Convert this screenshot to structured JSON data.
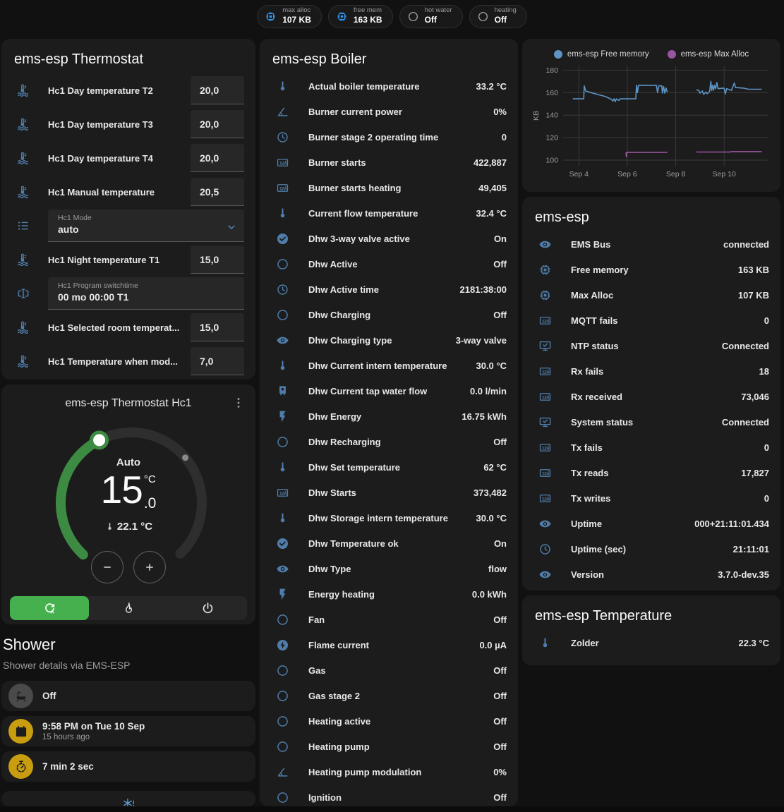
{
  "theme": {
    "bg": "#111111",
    "panel": "#1c1c1c",
    "input_bg": "#272727",
    "text": "#e8e8e8",
    "text_secondary": "#9c9c9c",
    "icon_blue": "#4f7ca9",
    "icon_bright_blue": "#2e97f2",
    "icon_gray": "#9e9e9e",
    "icon_yellow": "#c99d10",
    "green": "#3d8b42",
    "green_bright": "#45b04d"
  },
  "topbar": {
    "chips": [
      {
        "label": "max alloc",
        "value": "107 KB",
        "icon": "chip",
        "icon_color": "#2e97f2"
      },
      {
        "label": "free mem",
        "value": "163 KB",
        "icon": "chip",
        "icon_color": "#2e97f2"
      },
      {
        "label": "hot water",
        "value": "Off",
        "icon": "circle-outline",
        "icon_color": "#9e9e9e"
      },
      {
        "label": "heating",
        "value": "Off",
        "icon": "circle-outline",
        "icon_color": "#9e9e9e"
      }
    ]
  },
  "thermostat_panel": {
    "title": "ems-esp Thermostat",
    "rows": [
      {
        "type": "number",
        "icon": "thermometer-water",
        "label": "Hc1 Day temperature T2",
        "value": "20,0"
      },
      {
        "type": "number",
        "icon": "thermometer-water",
        "label": "Hc1 Day temperature T3",
        "value": "20,0"
      },
      {
        "type": "number",
        "icon": "thermometer-water",
        "label": "Hc1 Day temperature T4",
        "value": "20,0"
      },
      {
        "type": "number",
        "icon": "thermometer-water",
        "label": "Hc1 Manual temperature",
        "value": "20,5"
      },
      {
        "type": "select",
        "icon": "format-list",
        "label": "Hc1 Mode",
        "value": "auto"
      },
      {
        "type": "number",
        "icon": "thermometer-water",
        "label": "Hc1 Night temperature T1",
        "value": "15,0"
      },
      {
        "type": "text",
        "icon": "form-textbox",
        "label": "Hc1 Program switchtime",
        "value": "00 mo 00:00 T1"
      },
      {
        "type": "number",
        "icon": "thermometer-water",
        "label": "Hc1 Selected room temperat...",
        "value": "15,0"
      },
      {
        "type": "number",
        "icon": "thermometer-water",
        "label": "Hc1 Temperature when mod...",
        "value": "7,0"
      }
    ]
  },
  "thermostat_card": {
    "title": "ems-esp Thermostat Hc1",
    "mode_label": "Auto",
    "target_int": "15",
    "target_dec": ".0",
    "target_unit": "°C",
    "current_temperature": "22.1 °C"
  },
  "shower": {
    "title": "Shower",
    "subtitle": "Shower details via EMS-ESP",
    "cards": [
      {
        "icon": "bathtub",
        "icon_color": "#4a4a4a",
        "primary": "Off"
      },
      {
        "icon": "calendar",
        "icon_color": "#c99d10",
        "primary": "9:58 PM on Tue 10 Sep",
        "secondary": "15 hours ago"
      },
      {
        "icon": "timer",
        "icon_color": "#c99d10",
        "primary": "7 min 2 sec"
      }
    ],
    "partial_card_icon": "snowflake-alert"
  },
  "boiler_panel": {
    "title": "ems-esp Boiler",
    "rows": [
      {
        "icon": "thermometer",
        "label": "Actual boiler temperature",
        "value": "33.2 °C"
      },
      {
        "icon": "angle-acute",
        "label": "Burner current power",
        "value": "0%"
      },
      {
        "icon": "clock",
        "label": "Burner stage 2 operating time",
        "value": "0"
      },
      {
        "icon": "counter",
        "label": "Burner starts",
        "value": "422,887"
      },
      {
        "icon": "counter",
        "label": "Burner starts heating",
        "value": "49,405"
      },
      {
        "icon": "thermometer",
        "label": "Current flow temperature",
        "value": "32.4 °C"
      },
      {
        "icon": "check-circle",
        "label": "Dhw 3-way valve active",
        "value": "On"
      },
      {
        "icon": "circle-outline",
        "label": "Dhw Active",
        "value": "Off"
      },
      {
        "icon": "clock",
        "label": "Dhw Active time",
        "value": "2181:38:00"
      },
      {
        "icon": "circle-outline",
        "label": "Dhw Charging",
        "value": "Off"
      },
      {
        "icon": "eye",
        "label": "Dhw Charging type",
        "value": "3-way valve"
      },
      {
        "icon": "thermometer",
        "label": "Dhw Current intern temperature",
        "value": "30.0 °C"
      },
      {
        "icon": "water-boiler",
        "label": "Dhw Current tap water flow",
        "value": "0.0 l/min"
      },
      {
        "icon": "flash",
        "label": "Dhw Energy",
        "value": "16.75 kWh"
      },
      {
        "icon": "circle-outline",
        "label": "Dhw Recharging",
        "value": "Off"
      },
      {
        "icon": "thermometer",
        "label": "Dhw Set temperature",
        "value": "62 °C"
      },
      {
        "icon": "counter",
        "label": "Dhw Starts",
        "value": "373,482"
      },
      {
        "icon": "thermometer",
        "label": "Dhw Storage intern temperature",
        "value": "30.0 °C"
      },
      {
        "icon": "check-circle",
        "label": "Dhw Temperature ok",
        "value": "On"
      },
      {
        "icon": "eye",
        "label": "Dhw Type",
        "value": "flow"
      },
      {
        "icon": "flash",
        "label": "Energy heating",
        "value": "0.0 kWh"
      },
      {
        "icon": "circle-outline",
        "label": "Fan",
        "value": "Off"
      },
      {
        "icon": "flash-circle",
        "label": "Flame current",
        "value": "0.0 µA"
      },
      {
        "icon": "circle-outline",
        "label": "Gas",
        "value": "Off"
      },
      {
        "icon": "circle-outline",
        "label": "Gas stage 2",
        "value": "Off"
      },
      {
        "icon": "circle-outline",
        "label": "Heating active",
        "value": "Off"
      },
      {
        "icon": "circle-outline",
        "label": "Heating pump",
        "value": "Off"
      },
      {
        "icon": "angle-acute",
        "label": "Heating pump modulation",
        "value": "0%"
      },
      {
        "icon": "circle-outline",
        "label": "Ignition",
        "value": "Off"
      }
    ]
  },
  "emsesp_panel": {
    "title": "ems-esp",
    "rows": [
      {
        "icon": "eye",
        "label": "EMS Bus",
        "value": "connected"
      },
      {
        "icon": "chip",
        "label": "Free memory",
        "value": "163 KB"
      },
      {
        "icon": "chip",
        "label": "Max Alloc",
        "value": "107 KB"
      },
      {
        "icon": "counter",
        "label": "MQTT fails",
        "value": "0"
      },
      {
        "icon": "monitor-check",
        "label": "NTP status",
        "value": "Connected"
      },
      {
        "icon": "counter",
        "label": "Rx fails",
        "value": "18"
      },
      {
        "icon": "counter",
        "label": "Rx received",
        "value": "73,046"
      },
      {
        "icon": "monitor-check",
        "label": "System status",
        "value": "Connected"
      },
      {
        "icon": "counter",
        "label": "Tx fails",
        "value": "0"
      },
      {
        "icon": "counter",
        "label": "Tx reads",
        "value": "17,827"
      },
      {
        "icon": "counter",
        "label": "Tx writes",
        "value": "0"
      },
      {
        "icon": "eye",
        "label": "Uptime",
        "value": "000+21:11:01.434"
      },
      {
        "icon": "clock",
        "label": "Uptime (sec)",
        "value": "21:11:01"
      },
      {
        "icon": "eye",
        "label": "Version",
        "value": "3.7.0-dev.35"
      }
    ]
  },
  "temperature_panel": {
    "title": "ems-esp Temperature",
    "rows": [
      {
        "icon": "thermometer",
        "label": "Zolder",
        "value": "22.3 °C"
      }
    ]
  },
  "chart_data": {
    "type": "line",
    "ylabel": "KB",
    "xlim": [
      3.35,
      11.8
    ],
    "ylim": [
      95,
      184
    ],
    "yticks": [
      100,
      120,
      140,
      160,
      180
    ],
    "xticks": [
      {
        "x": 4,
        "label": "Sep 4"
      },
      {
        "x": 6,
        "label": "Sep 6"
      },
      {
        "x": 8,
        "label": "Sep 8"
      },
      {
        "x": 10,
        "label": "Sep 10"
      }
    ],
    "grid": true,
    "legend_position": "top",
    "series": [
      {
        "name": "ems-esp Free memory",
        "color": "#5e94c5",
        "segments": [
          [
            [
              3.75,
              154.5
            ],
            [
              4.2,
              154.5
            ],
            [
              4.22,
              166
            ],
            [
              4.28,
              161.5
            ],
            [
              4.5,
              160
            ],
            [
              5.1,
              156.5
            ],
            [
              5.35,
              154
            ],
            [
              5.4,
              152.5
            ],
            [
              5.45,
              154.5
            ],
            [
              5.5,
              152
            ],
            [
              5.55,
              154.5
            ],
            [
              5.65,
              153
            ],
            [
              5.7,
              154.5
            ],
            [
              6.35,
              154.5
            ],
            [
              6.38,
              166.5
            ],
            [
              6.42,
              160
            ],
            [
              6.46,
              166.5
            ],
            [
              7.2,
              166.5
            ],
            [
              7.25,
              160
            ],
            [
              7.3,
              166
            ],
            [
              7.42,
              166
            ],
            [
              7.45,
              159.5
            ],
            [
              7.5,
              165.5
            ],
            [
              7.55,
              159.5
            ],
            [
              7.6,
              164
            ],
            [
              7.65,
              160.5
            ]
          ],
          [
            [
              8.85,
              162.5
            ],
            [
              8.95,
              162
            ],
            [
              9.0,
              159.5
            ],
            [
              9.1,
              161.5
            ],
            [
              9.15,
              158.5
            ],
            [
              9.25,
              160.5
            ],
            [
              9.3,
              159
            ],
            [
              9.4,
              161
            ],
            [
              9.45,
              170
            ],
            [
              9.48,
              162
            ],
            [
              9.52,
              166.5
            ],
            [
              9.56,
              162
            ],
            [
              9.6,
              166.5
            ],
            [
              9.65,
              163.5
            ],
            [
              9.7,
              169
            ],
            [
              9.75,
              163.5
            ],
            [
              9.95,
              164
            ],
            [
              10.0,
              163.8
            ],
            [
              10.05,
              158.8
            ],
            [
              10.1,
              163.5
            ],
            [
              10.3,
              162
            ],
            [
              10.42,
              168.5
            ],
            [
              10.47,
              164.5
            ],
            [
              10.8,
              164
            ],
            [
              11.0,
              163
            ],
            [
              11.55,
              163
            ]
          ]
        ]
      },
      {
        "name": "ems-esp Max Alloc",
        "color": "#9a55a0",
        "segments": [
          [
            [
              5.95,
              107
            ],
            [
              5.96,
              103
            ],
            [
              5.98,
              107
            ],
            [
              7.65,
              107
            ]
          ],
          [
            [
              8.85,
              107.2
            ],
            [
              10.25,
              107.2
            ],
            [
              10.3,
              107.6
            ],
            [
              11.55,
              107.6
            ]
          ]
        ]
      }
    ]
  }
}
